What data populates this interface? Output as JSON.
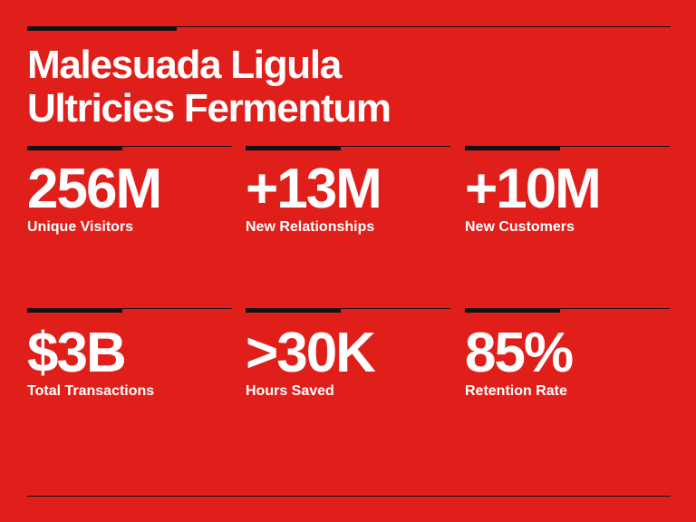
{
  "title": {
    "line1": "Malesuada Ligula",
    "line2": "Ultricies Fermentum"
  },
  "stats": [
    {
      "value": "256M",
      "label": "Unique Visitors"
    },
    {
      "value": "+13M",
      "label": "New Relationships"
    },
    {
      "value": "+10M",
      "label": "New Customers"
    },
    {
      "value": "$3B",
      "label": "Total Transactions"
    },
    {
      "value": ">30K",
      "label": "Hours Saved"
    },
    {
      "value": "85%",
      "label": "Retention Rate"
    }
  ],
  "colors": {
    "background": "#e01f1a",
    "text": "#ffffff",
    "rules": "#111111"
  }
}
